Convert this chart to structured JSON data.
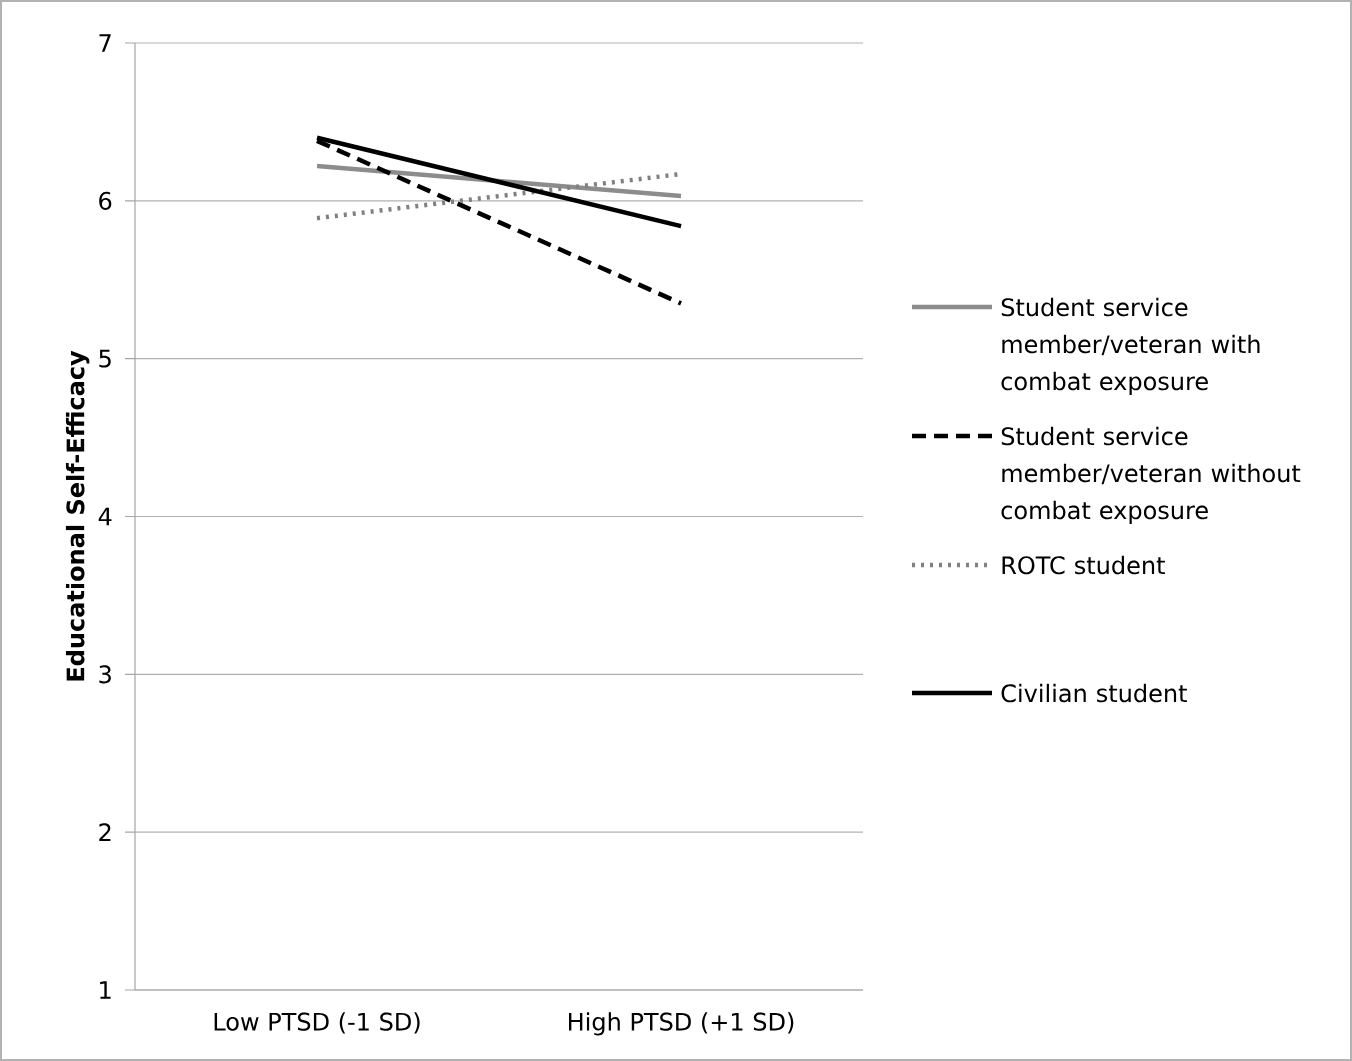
{
  "chart_data": {
    "type": "line",
    "ylabel": "Educational Self-Efficacy",
    "categories": [
      "Low PTSD (-1 SD)",
      "High PTSD (+1 SD)"
    ],
    "series": [
      {
        "name": "Student service member/veteran with combat exposure",
        "color": "#8c8c8c",
        "line_style": "solid",
        "values": [
          6.22,
          6.03
        ]
      },
      {
        "name": "Student service member/veteran without combat exposure",
        "color": "#000000",
        "line_style": "dashed",
        "values": [
          6.38,
          5.35
        ]
      },
      {
        "name": "ROTC student",
        "color": "#808080",
        "line_style": "dotted",
        "values": [
          5.89,
          6.17
        ]
      },
      {
        "name": "Civilian student",
        "color": "#000000",
        "line_style": "solid",
        "values": [
          6.4,
          5.84
        ]
      }
    ],
    "ylim": [
      1,
      7
    ],
    "yticks": [
      1,
      2,
      3,
      4,
      5,
      6,
      7
    ],
    "grid": "y",
    "legend": "right",
    "marker": "none"
  }
}
